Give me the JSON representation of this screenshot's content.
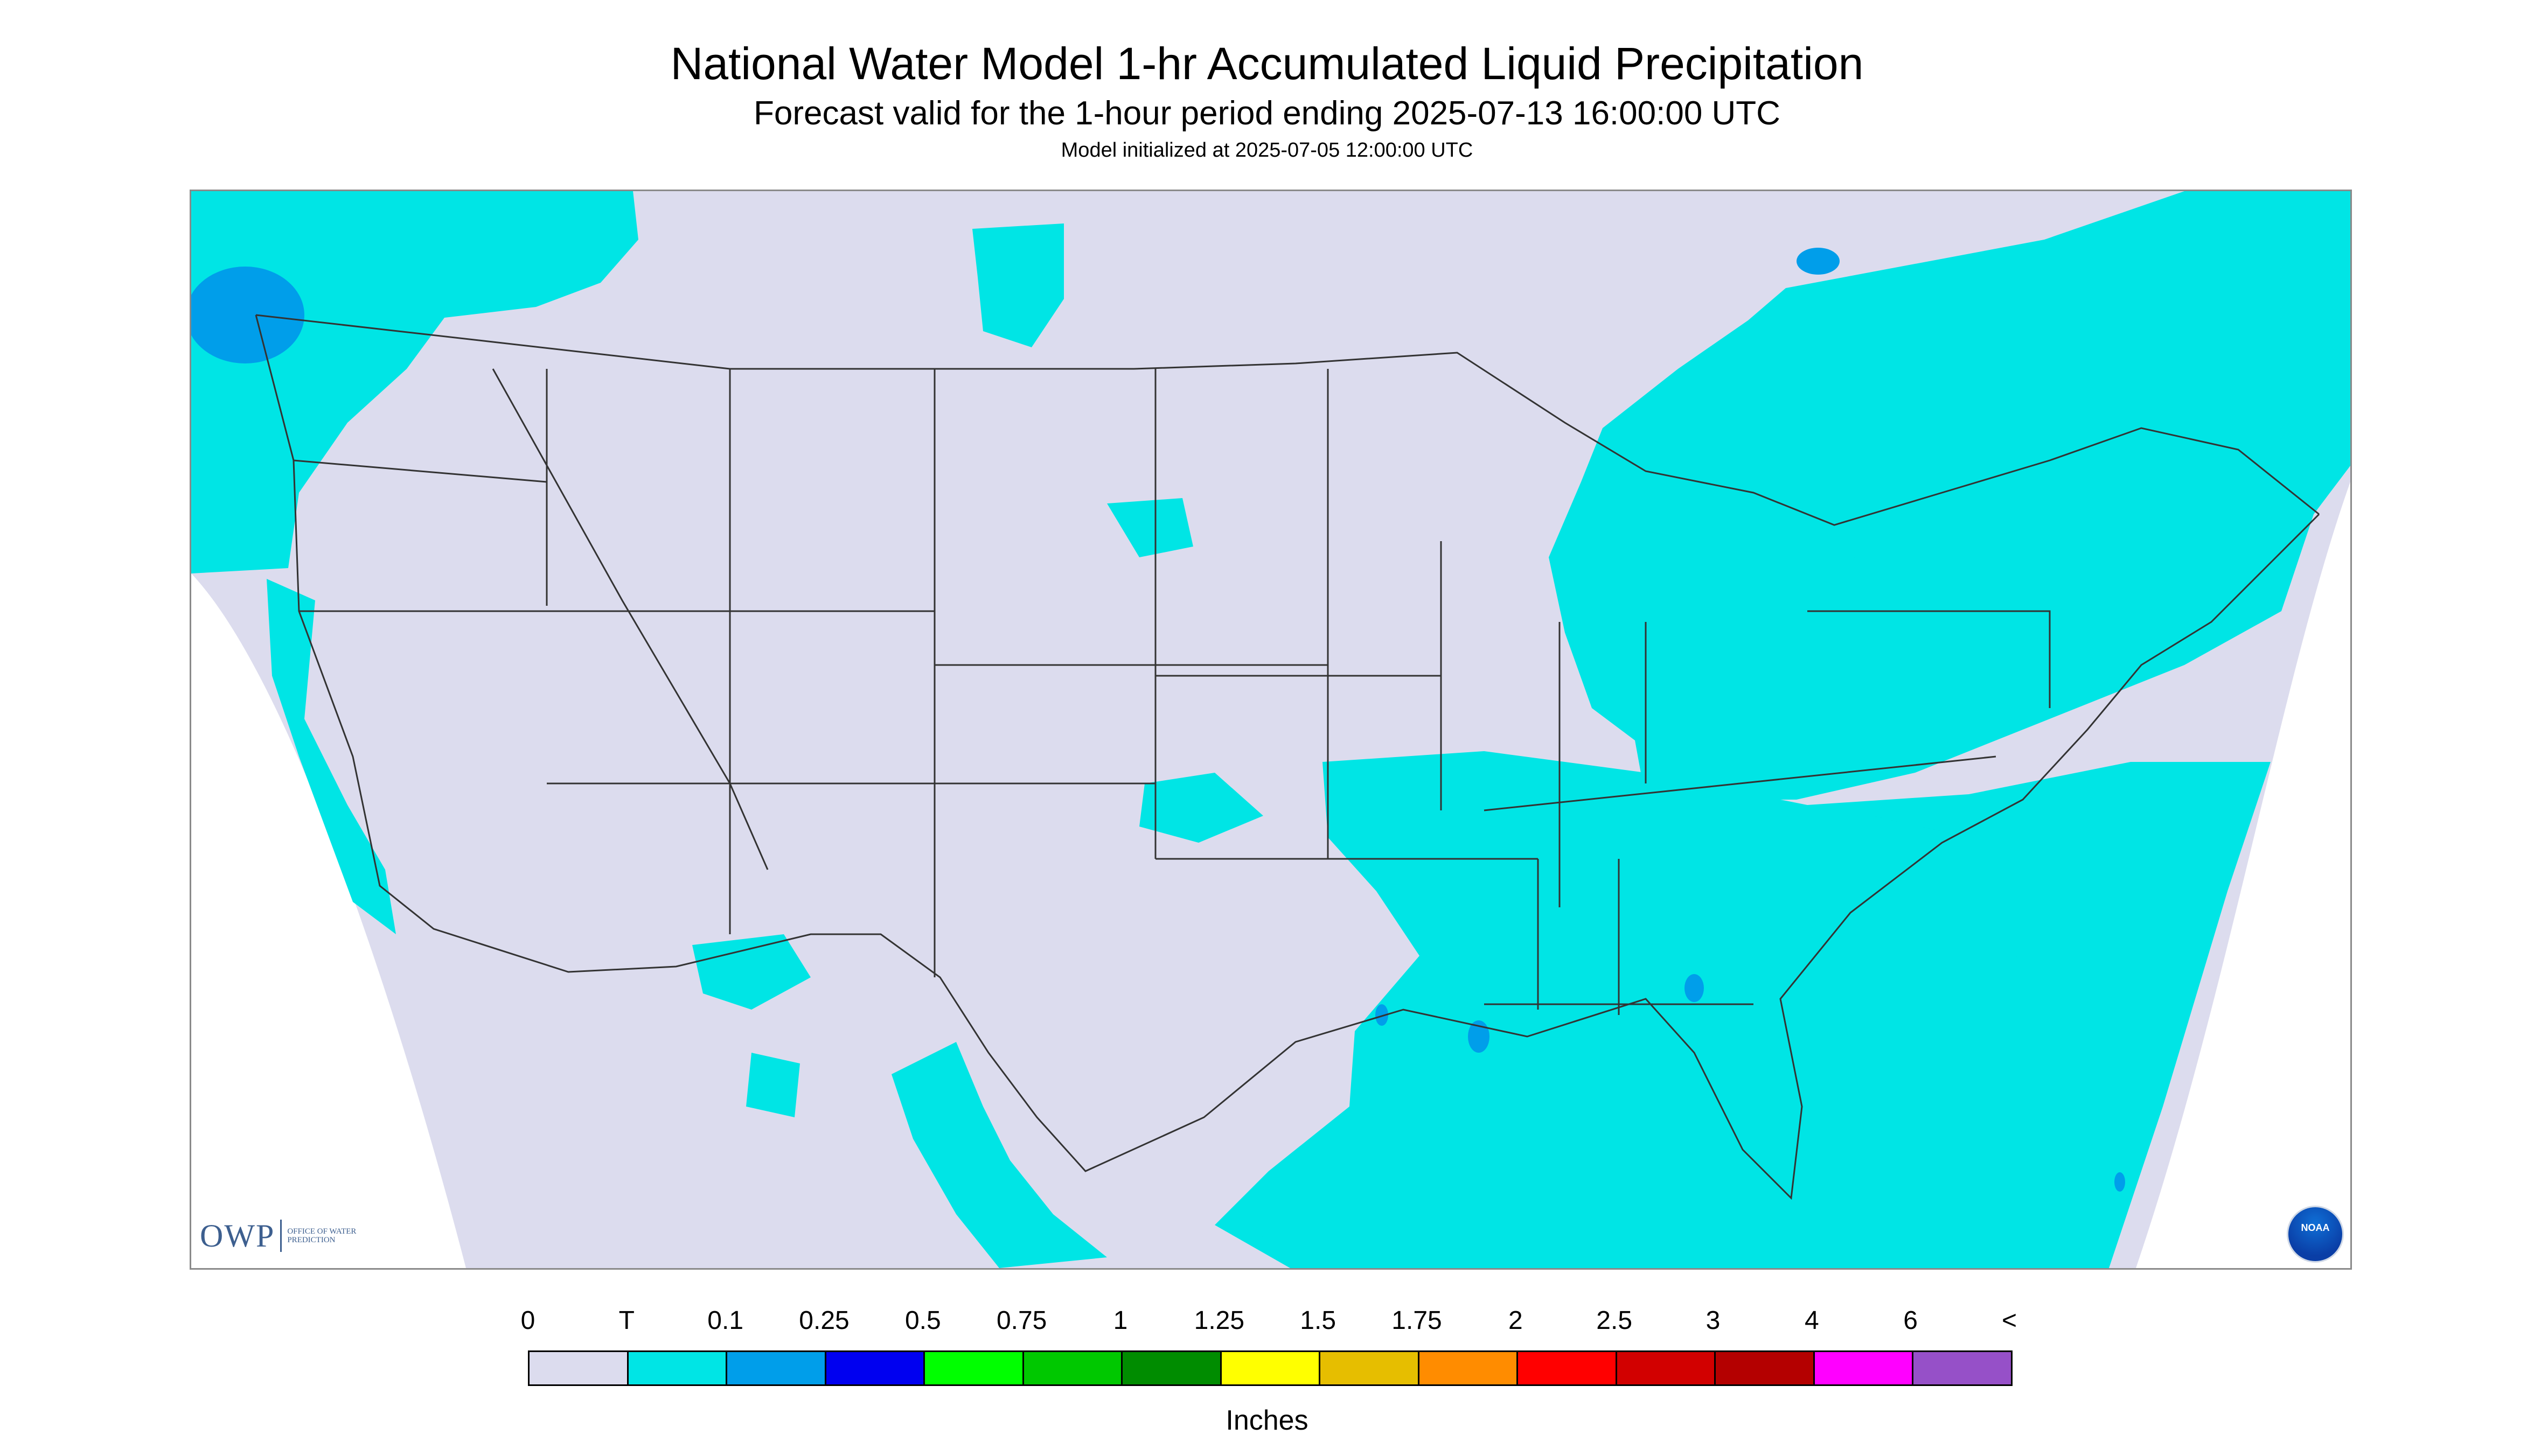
{
  "header": {
    "title": "National Water Model 1-hr Accumulated Liquid Precipitation",
    "subtitle": "Forecast valid for the 1-hour period ending 2025-07-13 16:00:00 UTC",
    "init": "Model initialized at 2025-07-05 12:00:00 UTC"
  },
  "logos": {
    "owp_letters": "OWP",
    "owp_text": "OFFICE OF WATER PREDICTION",
    "noaa_text": "NOAA"
  },
  "legend": {
    "units": "Inches",
    "labels": [
      "0",
      "T",
      "0.1",
      "0.25",
      "0.5",
      "0.75",
      "1",
      "1.25",
      "1.5",
      "1.75",
      "2",
      "2.5",
      "3",
      "4",
      "6",
      "<"
    ],
    "colors": [
      "#dcdcee",
      "#00e5e5",
      "#009eea",
      "#0000f0",
      "#00ff00",
      "#00c800",
      "#008c00",
      "#ffff00",
      "#e6be00",
      "#ff8c00",
      "#ff0000",
      "#d20000",
      "#b40000",
      "#ff00ff",
      "#9650c8"
    ]
  },
  "map": {
    "no_precip_color": "#dcdcee",
    "trace_color": "#00e5e5",
    "light_color": "#009eea",
    "outside_color": "#ffffff",
    "border_color": "#333333"
  }
}
